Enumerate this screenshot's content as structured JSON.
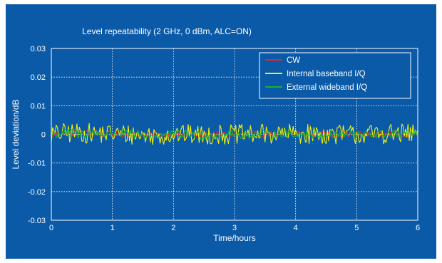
{
  "chart_data": {
    "type": "line",
    "title": "Level repeatability (2 GHz, 0 dBm, ALC=ON)",
    "xlabel": "Time/hours",
    "ylabel": "Level deviation/dB",
    "xlim": [
      0,
      6
    ],
    "ylim": [
      -0.03,
      0.03
    ],
    "x_ticks": [
      "0",
      "1",
      "2",
      "3",
      "4",
      "5",
      "6"
    ],
    "y_ticks": [
      "0.03",
      "0.02",
      "0.01",
      "0",
      "-0.01",
      "-0.02",
      "-0.03"
    ],
    "grid": true,
    "legend_position": "top-right",
    "series": [
      {
        "name": "CW",
        "color": "#e8222a",
        "amplitude": 0.0012,
        "x": [
          0,
          0.25,
          0.5,
          0.75,
          1,
          1.25,
          1.5,
          1.75,
          2,
          2.25,
          2.5,
          2.75,
          3,
          3.25,
          3.5,
          3.75,
          4,
          4.25,
          4.5,
          4.75,
          5,
          5.25,
          5.5,
          5.75,
          6
        ],
        "values": [
          0,
          0.0005,
          0.0004,
          0.0003,
          0.0002,
          0.0001,
          -0.0003,
          -0.0004,
          0,
          0,
          -0.0003,
          0,
          0,
          -0.0001,
          0.0001,
          0,
          0.0002,
          0.0001,
          0,
          0.0001,
          0,
          0,
          0.0002,
          0.0002,
          0.0002
        ]
      },
      {
        "name": "Internal baseband I/Q",
        "color": "#f2f20c",
        "amplitude": 0.0035,
        "x": [
          0,
          0.25,
          0.5,
          0.75,
          1,
          1.25,
          1.5,
          1.75,
          2,
          2.25,
          2.5,
          2.75,
          3,
          3.25,
          3.5,
          3.75,
          4,
          4.25,
          4.5,
          4.75,
          5,
          5.25,
          5.5,
          5.75,
          6
        ],
        "values": [
          0,
          0.0005,
          0.0004,
          0.0003,
          0.0002,
          0.0001,
          -0.0003,
          -0.0004,
          0,
          0,
          -0.0003,
          0,
          0,
          -0.0001,
          0.0001,
          0,
          0.0002,
          0.0001,
          0,
          0.0001,
          0,
          0,
          0.0002,
          0.0002,
          0.0002
        ]
      },
      {
        "name": "External wideband I/Q",
        "color": "#0fb23a",
        "amplitude": 0.0015,
        "x": [
          0,
          0.25,
          0.5,
          0.75,
          1,
          1.25,
          1.5,
          1.75,
          2,
          2.25,
          2.5,
          2.75,
          3,
          3.25,
          3.5,
          3.75,
          4,
          4.25,
          4.5,
          4.75,
          5,
          5.25,
          5.5,
          5.75,
          6
        ],
        "values": [
          0,
          0.0005,
          0.0004,
          0.0003,
          0.0002,
          0.0001,
          -0.0003,
          -0.0004,
          0,
          0,
          -0.0003,
          0,
          0,
          -0.0001,
          0.0001,
          0,
          0.0002,
          0.0001,
          0,
          0.0001,
          0,
          0,
          0.0002,
          0.0002,
          0.0002
        ]
      }
    ]
  },
  "colors": {
    "background": "#0a5aa8",
    "grid": "#ffffff",
    "text": "#ffffff"
  }
}
